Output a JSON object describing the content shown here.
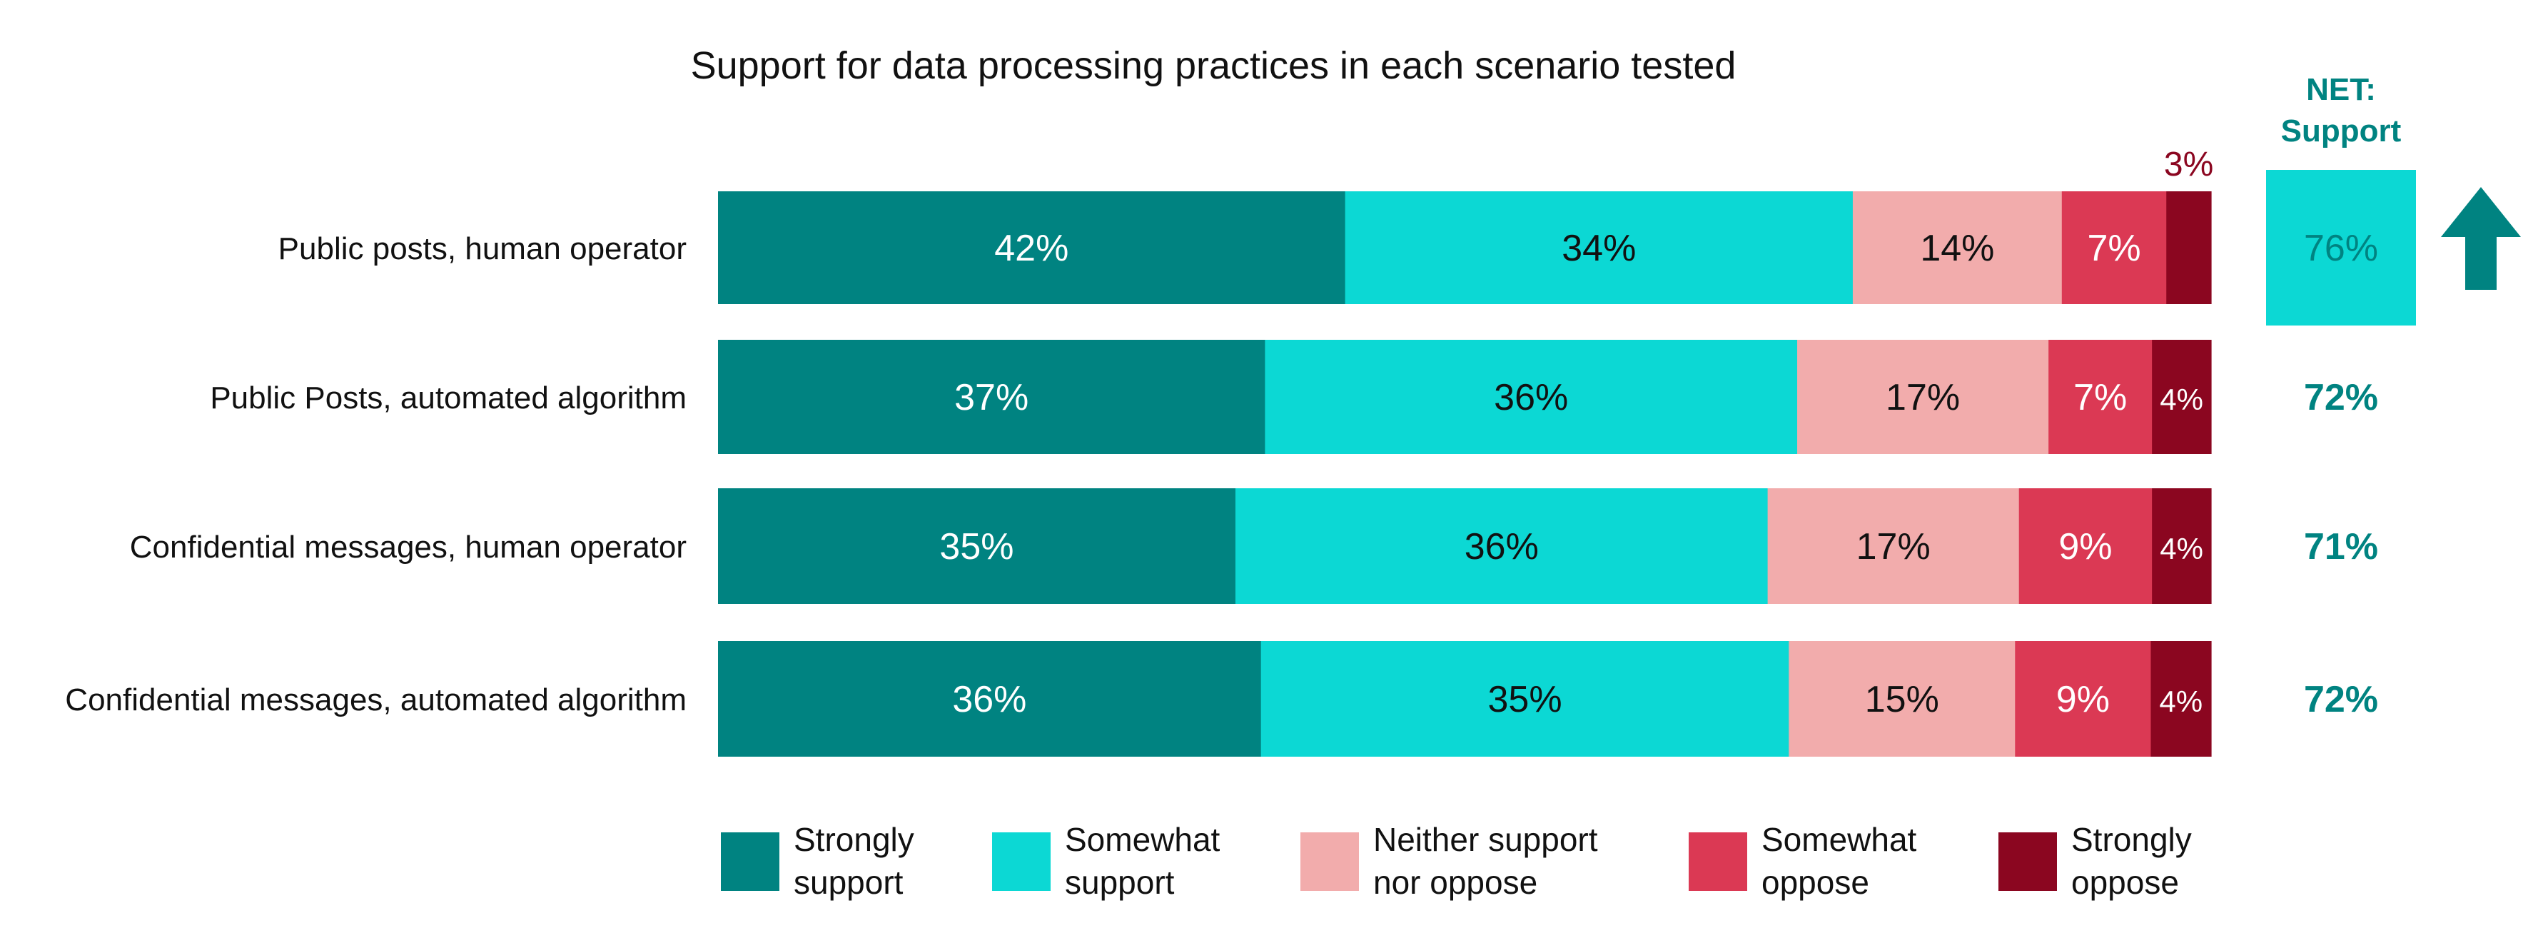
{
  "chart_data": {
    "type": "bar",
    "orientation": "horizontal",
    "stacked": true,
    "title": "Support for data processing practices in each scenario tested",
    "categories": [
      "Public posts, human operator",
      "Public Posts, automated algorithm",
      "Confidential messages, human operator",
      "Confidential messages, automated algorithm"
    ],
    "series": [
      {
        "name": "Strongly support",
        "color": "#008381",
        "values": [
          42,
          37,
          35,
          36
        ]
      },
      {
        "name": "Somewhat support",
        "color": "#0CD8D4",
        "values": [
          34,
          36,
          36,
          35
        ]
      },
      {
        "name": "Neither support nor oppose",
        "color": "#F2ACAC",
        "values": [
          14,
          17,
          17,
          15
        ]
      },
      {
        "name": "Somewhat oppose",
        "color": "#DB3954",
        "values": [
          7,
          7,
          9,
          9
        ]
      },
      {
        "name": "Strongly oppose",
        "color": "#8B0620",
        "values": [
          3,
          4,
          4,
          4
        ]
      }
    ],
    "value_suffix": "%",
    "net": {
      "label": "NET: Support",
      "values": [
        76,
        72,
        71,
        72
      ],
      "highlight_row": 0,
      "highlight_color": "#0CD8D4",
      "text_color": "#008381",
      "arrow": "up-arrow-icon"
    },
    "legend_position": "bottom",
    "grid": false
  }
}
